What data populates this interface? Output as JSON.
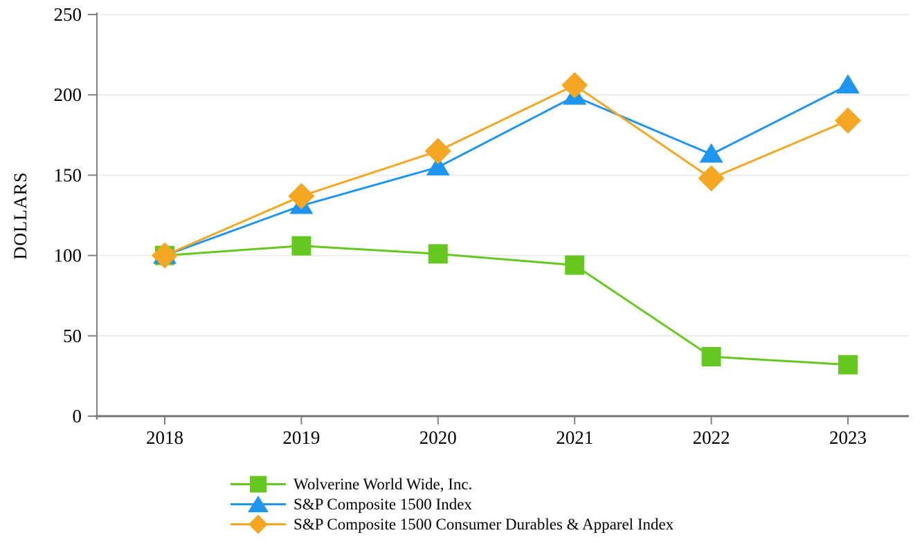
{
  "chart_data": {
    "type": "line",
    "title": "",
    "xlabel": "",
    "ylabel": "DOLLARS",
    "categories": [
      "2018",
      "2019",
      "2020",
      "2021",
      "2022",
      "2023"
    ],
    "yticks": [
      0,
      50,
      100,
      150,
      200,
      250
    ],
    "ylim": [
      0,
      250
    ],
    "grid": true,
    "legend_position": "bottom-left",
    "axis_color": "#808080",
    "gridline_color": "#ececec",
    "text_color": "#000000",
    "series": [
      {
        "name": "Wolverine World Wide, Inc.",
        "marker": "square",
        "color": "#66c71f",
        "values": [
          100,
          106,
          101,
          94,
          37,
          32
        ]
      },
      {
        "name": "S&P Composite 1500 Index",
        "marker": "triangle",
        "color": "#1e96f0",
        "values": [
          100,
          131,
          155,
          199,
          163,
          206
        ]
      },
      {
        "name": "S&P Composite 1500 Consumer Durables & Apparel Index",
        "marker": "diamond",
        "color": "#f5a623",
        "values": [
          100,
          137,
          165,
          206,
          148,
          184
        ]
      }
    ]
  }
}
